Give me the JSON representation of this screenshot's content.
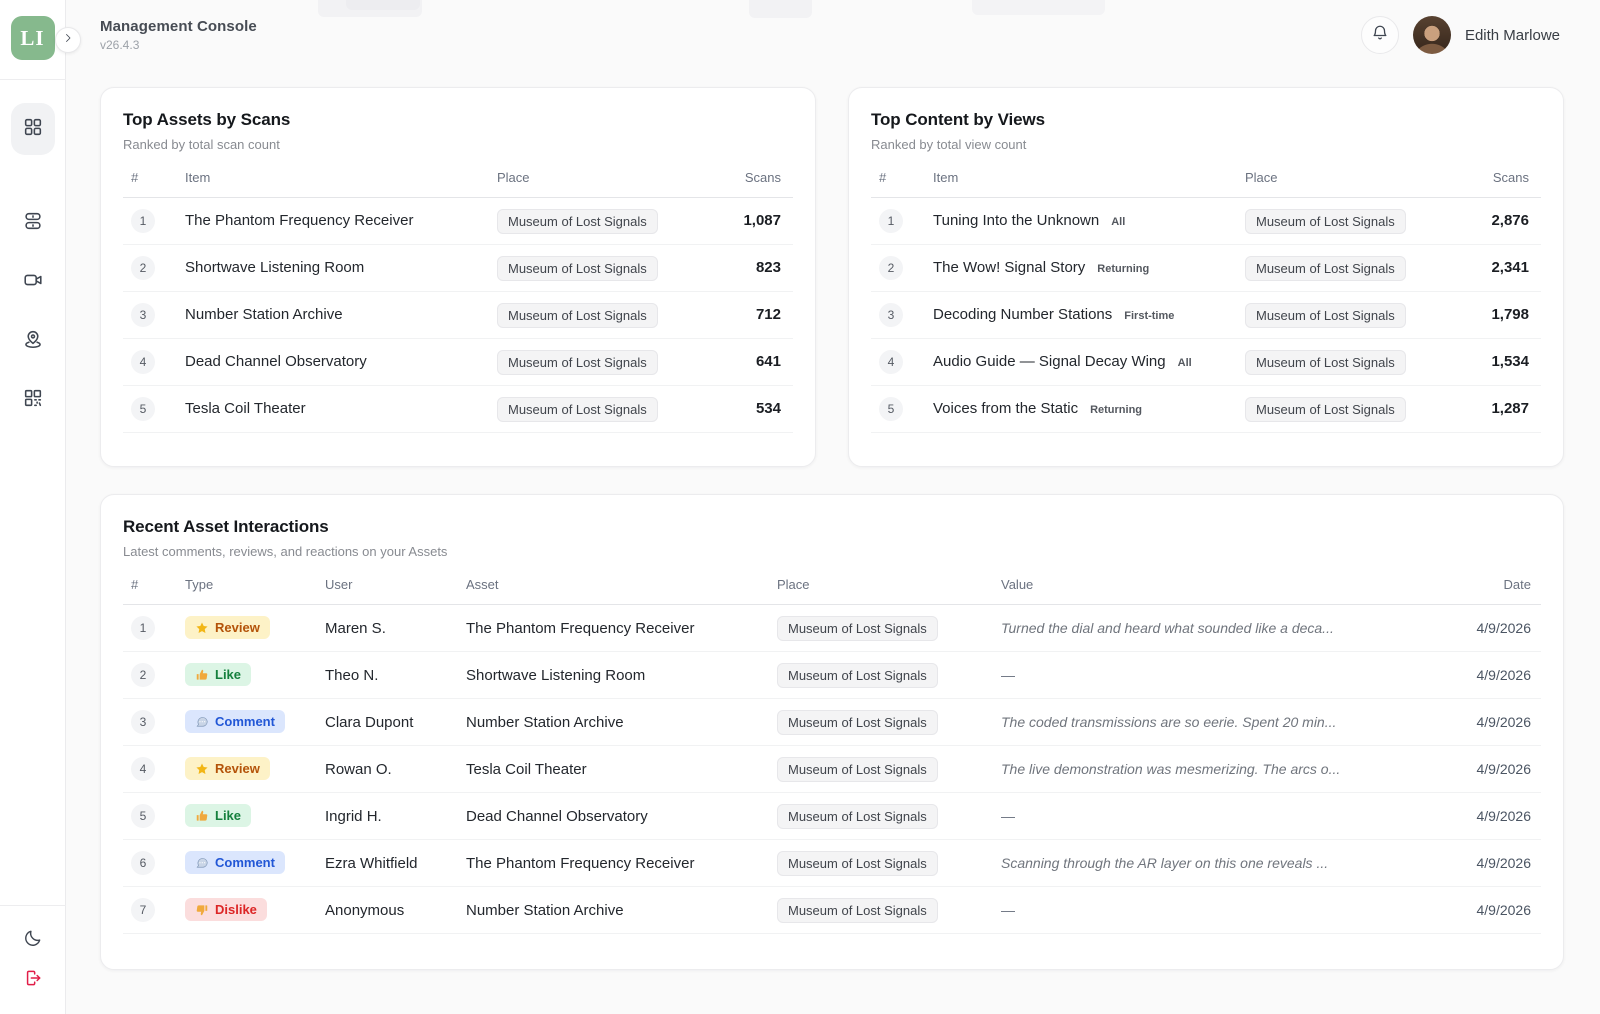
{
  "header": {
    "title": "Management Console",
    "version": "v26.4.3",
    "user_name": "Edith Marlowe",
    "logo_text": "LI",
    "icons": [
      "bell-icon",
      "chevron-right-icon"
    ]
  },
  "sidebar": {
    "nav_icons": [
      "dashboard-grid-icon",
      "server-icon",
      "video-camera-icon",
      "map-pin-icon",
      "qr-code-icon"
    ],
    "footer_icons": [
      "moon-icon",
      "logout-icon"
    ]
  },
  "cards": {
    "top_assets": {
      "title": "Top Assets by Scans",
      "subtitle": "Ranked by total scan count",
      "columns": [
        "#",
        "Item",
        "Place",
        "Scans"
      ],
      "rows": [
        {
          "rank": "1",
          "item": "The Phantom Frequency Receiver",
          "place": "Museum of Lost Signals",
          "scans": "1,087"
        },
        {
          "rank": "2",
          "item": "Shortwave Listening Room",
          "place": "Museum of Lost Signals",
          "scans": "823"
        },
        {
          "rank": "3",
          "item": "Number Station Archive",
          "place": "Museum of Lost Signals",
          "scans": "712"
        },
        {
          "rank": "4",
          "item": "Dead Channel Observatory",
          "place": "Museum of Lost Signals",
          "scans": "641"
        },
        {
          "rank": "5",
          "item": "Tesla Coil Theater",
          "place": "Museum of Lost Signals",
          "scans": "534"
        }
      ]
    },
    "top_content": {
      "title": "Top Content by Views",
      "subtitle": "Ranked by total view count",
      "columns": [
        "#",
        "Item",
        "Place",
        "Scans"
      ],
      "rows": [
        {
          "rank": "1",
          "item": "Tuning Into the Unknown",
          "audience": "All",
          "place": "Museum of Lost Signals",
          "scans": "2,876"
        },
        {
          "rank": "2",
          "item": "The Wow! Signal Story",
          "audience": "Returning",
          "place": "Museum of Lost Signals",
          "scans": "2,341"
        },
        {
          "rank": "3",
          "item": "Decoding Number Stations",
          "audience": "First-time",
          "place": "Museum of Lost Signals",
          "scans": "1,798"
        },
        {
          "rank": "4",
          "item": "Audio Guide — Signal Decay Wing",
          "audience": "All",
          "place": "Museum of Lost Signals",
          "scans": "1,534"
        },
        {
          "rank": "5",
          "item": "Voices from the Static",
          "audience": "Returning",
          "place": "Museum of Lost Signals",
          "scans": "1,287"
        }
      ]
    },
    "interactions": {
      "title": "Recent Asset Interactions",
      "subtitle": "Latest comments, reviews, and reactions on your Assets",
      "columns": [
        "#",
        "Type",
        "User",
        "Asset",
        "Place",
        "Value",
        "Date"
      ],
      "rows": [
        {
          "rank": "1",
          "type": {
            "label": "Review",
            "variant": "review",
            "icon": "star-icon"
          },
          "user": "Maren S.",
          "asset": "The Phantom Frequency Receiver",
          "place": "Museum of Lost Signals",
          "value": "Turned the dial and heard what sounded like a deca...",
          "date": "4/9/2026"
        },
        {
          "rank": "2",
          "type": {
            "label": "Like",
            "variant": "like",
            "icon": "thumb-up-icon"
          },
          "user": "Theo N.",
          "asset": "Shortwave Listening Room",
          "place": "Museum of Lost Signals",
          "value": "—",
          "date": "4/9/2026"
        },
        {
          "rank": "3",
          "type": {
            "label": "Comment",
            "variant": "comment",
            "icon": "speech-bubble-icon"
          },
          "user": "Clara Dupont",
          "asset": "Number Station Archive",
          "place": "Museum of Lost Signals",
          "value": "The coded transmissions are so eerie. Spent 20 min...",
          "date": "4/9/2026"
        },
        {
          "rank": "4",
          "type": {
            "label": "Review",
            "variant": "review",
            "icon": "star-icon"
          },
          "user": "Rowan O.",
          "asset": "Tesla Coil Theater",
          "place": "Museum of Lost Signals",
          "value": "The live demonstration was mesmerizing. The arcs o...",
          "date": "4/9/2026"
        },
        {
          "rank": "5",
          "type": {
            "label": "Like",
            "variant": "like",
            "icon": "thumb-up-icon"
          },
          "user": "Ingrid H.",
          "asset": "Dead Channel Observatory",
          "place": "Museum of Lost Signals",
          "value": "—",
          "date": "4/9/2026"
        },
        {
          "rank": "6",
          "type": {
            "label": "Comment",
            "variant": "comment",
            "icon": "speech-bubble-icon"
          },
          "user": "Ezra Whitfield",
          "asset": "The Phantom Frequency Receiver",
          "place": "Museum of Lost Signals",
          "value": "Scanning through the AR layer on this one reveals ...",
          "date": "4/9/2026"
        },
        {
          "rank": "7",
          "type": {
            "label": "Dislike",
            "variant": "dislike",
            "icon": "thumb-down-icon"
          },
          "user": "Anonymous",
          "asset": "Number Station Archive",
          "place": "Museum of Lost Signals",
          "value": "—",
          "date": "4/9/2026"
        }
      ]
    }
  },
  "colors": {
    "brand_green": "#86b98d",
    "logout_red": "#e11d48",
    "badge_review_bg": "#fdf2c7",
    "badge_review_text": "#b45309",
    "badge_like_bg": "#dcf5e5",
    "badge_like_text": "#15803d",
    "badge_comment_bg": "#dbe6fd",
    "badge_comment_text": "#2257d6",
    "badge_dislike_bg": "#fbdddd",
    "badge_dislike_text": "#dc2626"
  }
}
